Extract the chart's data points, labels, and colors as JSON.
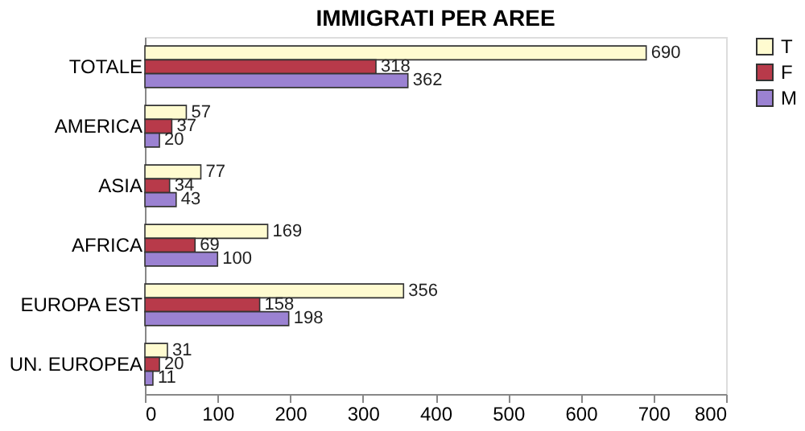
{
  "chart_data": {
    "type": "bar",
    "orientation": "horizontal",
    "title": "IMMIGRATI PER AREE",
    "categories": [
      "TOTALE",
      "AMERICA",
      "ASIA",
      "AFRICA",
      "EUROPA EST",
      "UN. EUROPEA"
    ],
    "series": [
      {
        "name": "T",
        "color": "#fffbd0",
        "values": [
          690,
          57,
          77,
          169,
          356,
          31
        ]
      },
      {
        "name": "F",
        "color": "#b83a4a",
        "values": [
          318,
          37,
          34,
          69,
          158,
          20
        ]
      },
      {
        "name": "M",
        "color": "#9b82d2",
        "values": [
          362,
          20,
          43,
          100,
          198,
          11
        ]
      }
    ],
    "xlim": [
      0,
      800
    ],
    "xticks": [
      0,
      100,
      200,
      300,
      400,
      500,
      600,
      700,
      800
    ],
    "data_labels": true,
    "legend": "right",
    "grid": false
  }
}
